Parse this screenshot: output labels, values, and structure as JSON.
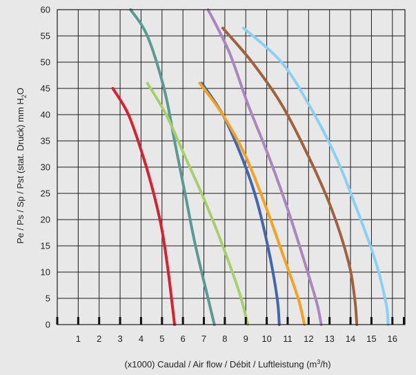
{
  "chart_data": {
    "type": "line",
    "title": "",
    "xlabel": "(x1000) Caudal / Air flow / Débit / Luftleistung",
    "xlabel_unit_pre": "(m",
    "xlabel_unit_sup": "3",
    "xlabel_unit_post": "/h)",
    "ylabel": "Pe / Ps / Sp / Pst (stat. Druck) mm H",
    "ylabel_sub": "2",
    "ylabel_post": "O",
    "xlim": [
      0,
      16.6
    ],
    "ylim": [
      0,
      60
    ],
    "x_ticks": [
      "1",
      "2",
      "3",
      "4",
      "5",
      "6",
      "7",
      "8",
      "9",
      "10",
      "11",
      "12",
      "13",
      "14",
      "15",
      "16"
    ],
    "y_ticks": [
      "0",
      "5",
      "10",
      "15",
      "20",
      "25",
      "30",
      "35",
      "40",
      "45",
      "50",
      "55",
      "60"
    ],
    "grid": true,
    "legend": "none",
    "series": [
      {
        "color": "#d9202e",
        "points": [
          [
            2.65,
            45
          ],
          [
            3.4,
            40
          ],
          [
            4.1,
            32
          ],
          [
            4.6,
            25
          ],
          [
            5.0,
            18
          ],
          [
            5.3,
            10
          ],
          [
            5.6,
            0
          ]
        ]
      },
      {
        "color": "#5a9a91",
        "points": [
          [
            3.5,
            60
          ],
          [
            4.3,
            55
          ],
          [
            5.1,
            45
          ],
          [
            5.6,
            35
          ],
          [
            6.1,
            25
          ],
          [
            6.6,
            15
          ],
          [
            7.2,
            5
          ],
          [
            7.5,
            0
          ]
        ]
      },
      {
        "color": "#a9cf6b",
        "points": [
          [
            4.3,
            46
          ],
          [
            5.2,
            40
          ],
          [
            6.1,
            32
          ],
          [
            7.0,
            24
          ],
          [
            7.9,
            15
          ],
          [
            8.7,
            6
          ],
          [
            9.1,
            0
          ]
        ]
      },
      {
        "color": "#4265b0",
        "points": [
          [
            6.9,
            46
          ],
          [
            7.9,
            40
          ],
          [
            8.8,
            32
          ],
          [
            9.5,
            24
          ],
          [
            10.1,
            14
          ],
          [
            10.5,
            5
          ],
          [
            10.6,
            0
          ]
        ]
      },
      {
        "color": "#f5a220",
        "points": [
          [
            6.8,
            46
          ],
          [
            7.9,
            40
          ],
          [
            9.0,
            32
          ],
          [
            10.0,
            22
          ],
          [
            10.8,
            13
          ],
          [
            11.5,
            5
          ],
          [
            11.8,
            0
          ]
        ]
      },
      {
        "color": "#a986c0",
        "points": [
          [
            7.2,
            60
          ],
          [
            8.2,
            52
          ],
          [
            9.1,
            42
          ],
          [
            10.1,
            32
          ],
          [
            11.0,
            22
          ],
          [
            11.8,
            12
          ],
          [
            12.4,
            4
          ],
          [
            12.6,
            0
          ]
        ]
      },
      {
        "color": "#a0623d",
        "points": [
          [
            7.9,
            56.5
          ],
          [
            9.3,
            50
          ],
          [
            10.7,
            42
          ],
          [
            12.0,
            32
          ],
          [
            13.1,
            22
          ],
          [
            13.9,
            12
          ],
          [
            14.2,
            5
          ],
          [
            14.3,
            0
          ]
        ]
      },
      {
        "color": "#88d1f3",
        "points": [
          [
            8.9,
            56.5
          ],
          [
            10.7,
            50
          ],
          [
            12.0,
            42
          ],
          [
            13.3,
            32
          ],
          [
            14.3,
            22
          ],
          [
            15.2,
            12
          ],
          [
            15.7,
            4
          ],
          [
            15.8,
            0
          ]
        ]
      }
    ]
  }
}
